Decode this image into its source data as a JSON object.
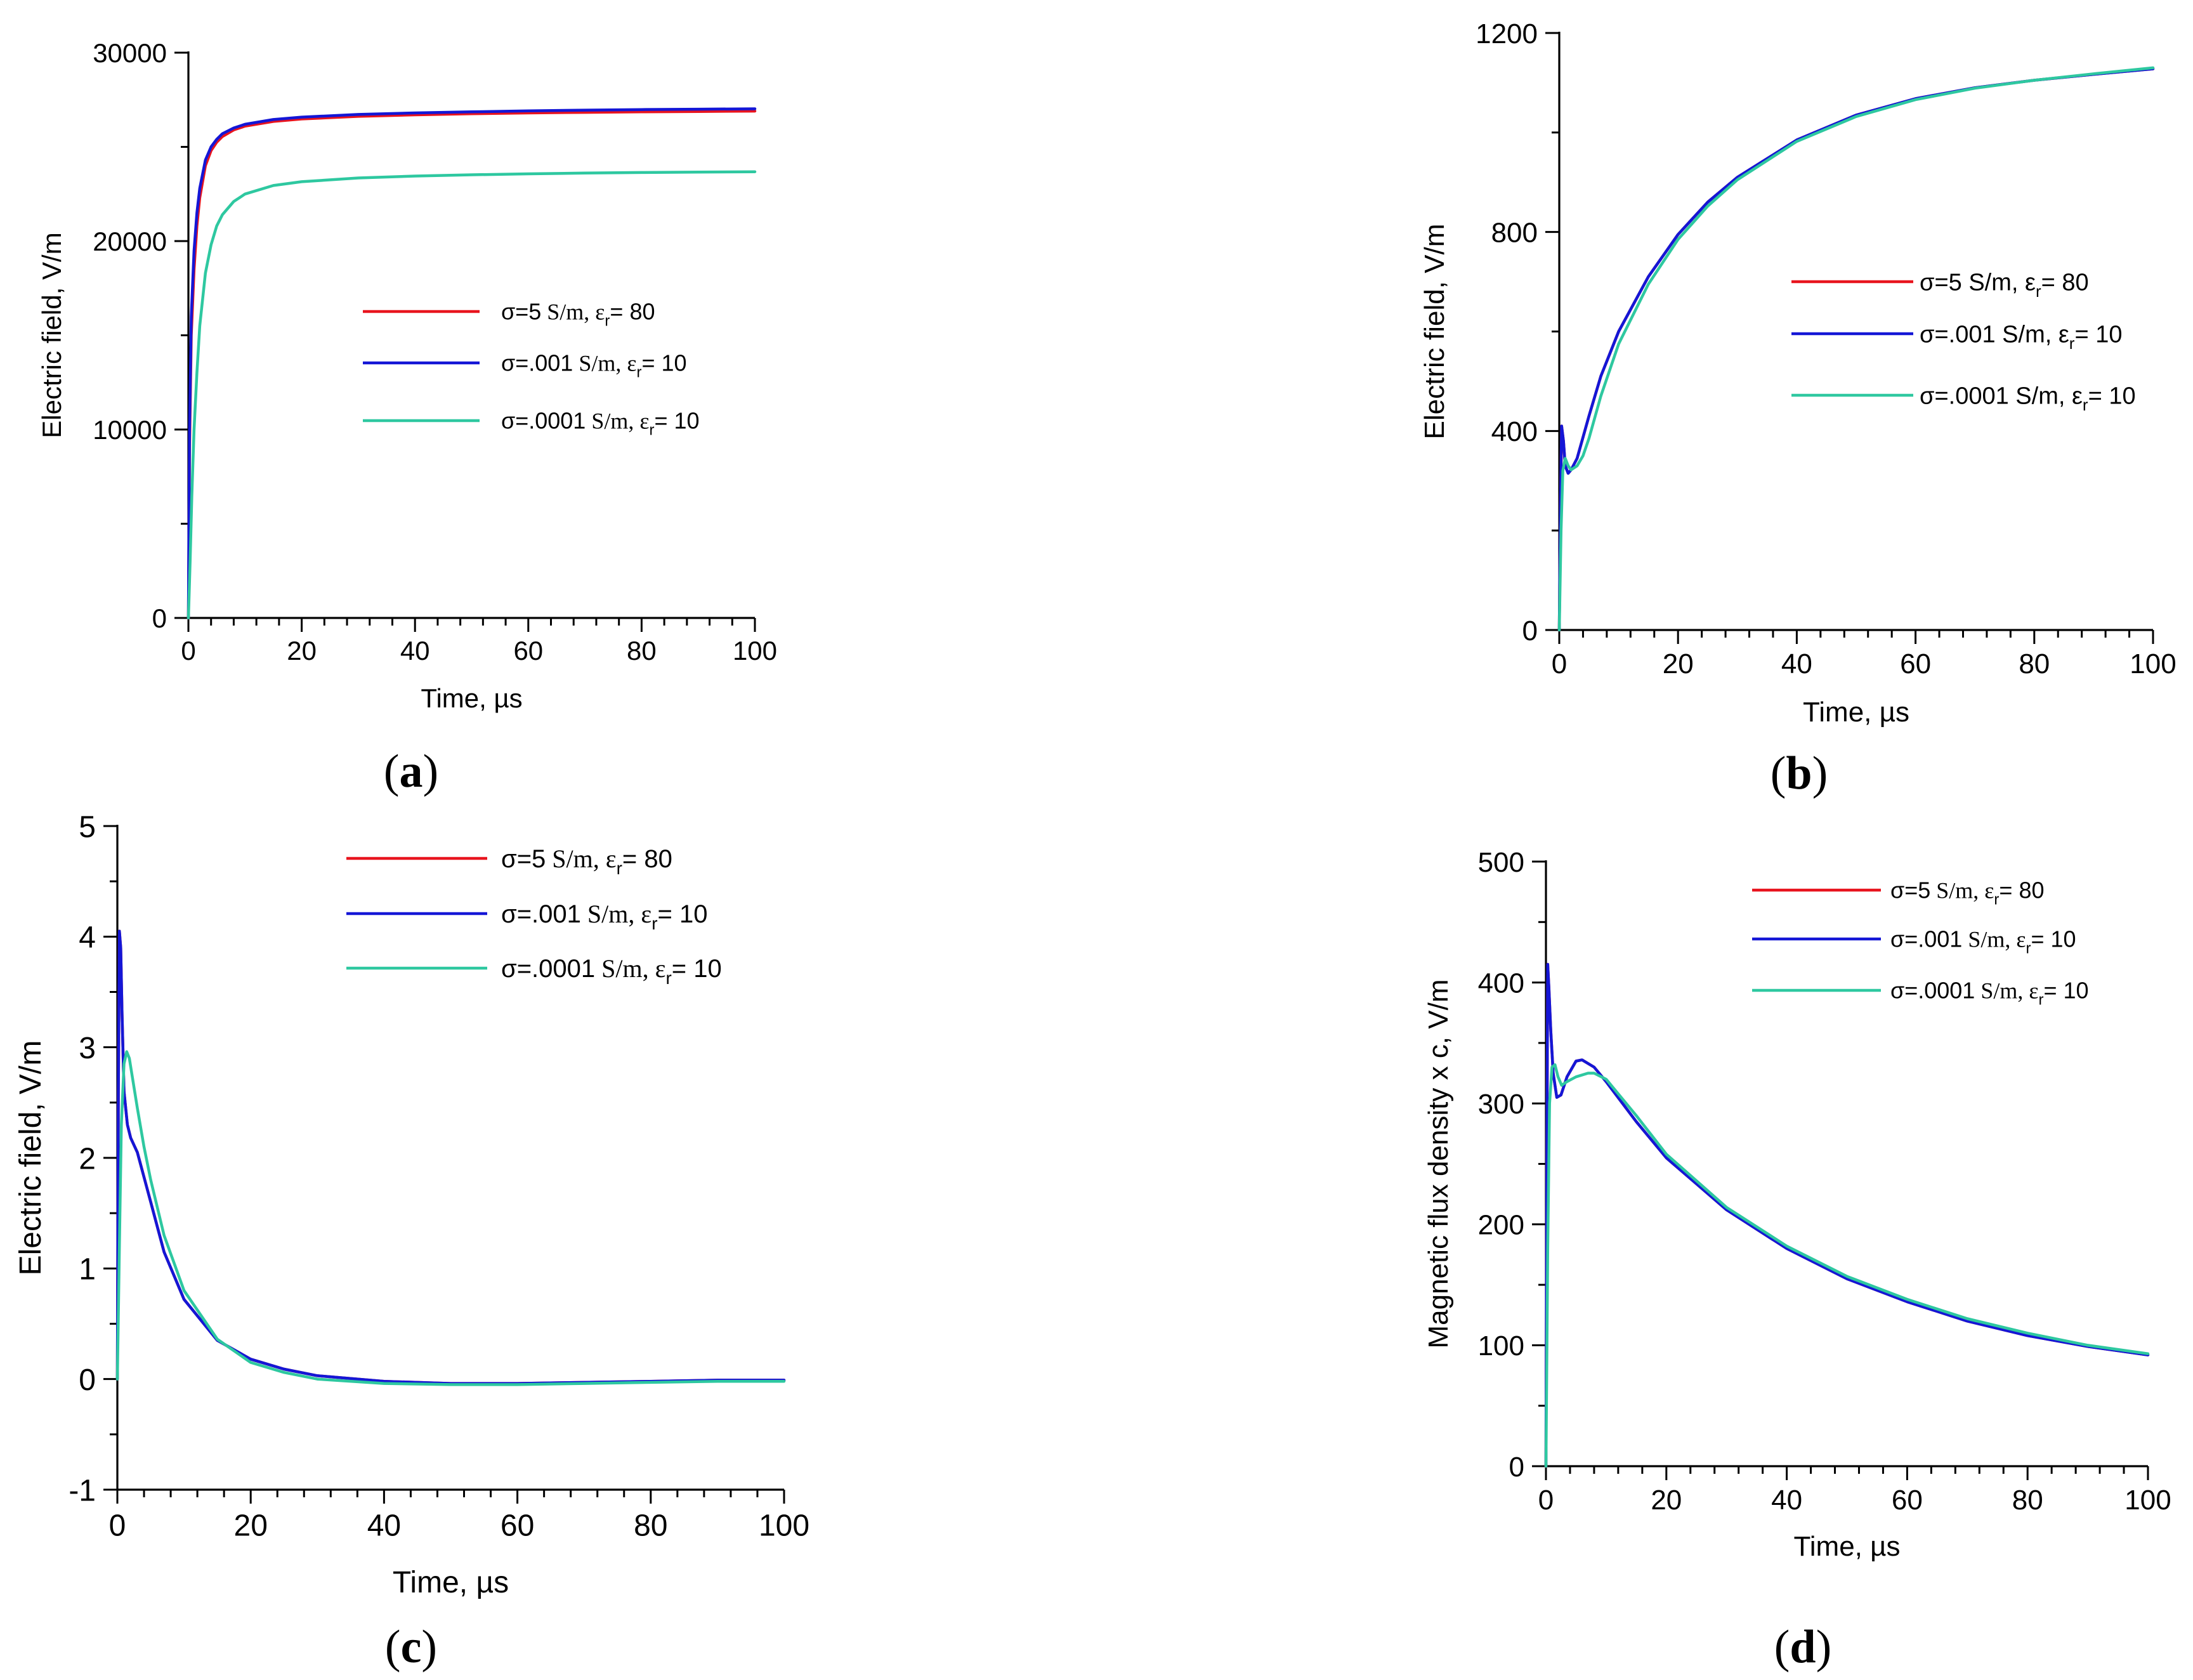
{
  "colors": {
    "red": "#e8141e",
    "blue": "#1416d6",
    "teal": "#2ec8a0"
  },
  "chart_data": [
    {
      "id": "a",
      "panel_label": {
        "pre": "(",
        "letter": "a",
        "post": ")"
      },
      "type": "line",
      "xlabel": "Time, µs",
      "ylabel": "Electric field, V/m",
      "xlim": [
        0,
        100
      ],
      "ylim": [
        0,
        30000
      ],
      "xticks": [
        0,
        20,
        40,
        60,
        80,
        100
      ],
      "xtick_labels": [
        "0",
        "20",
        "40",
        "60",
        "80",
        "100"
      ],
      "yticks": [
        0,
        10000,
        20000,
        30000
      ],
      "ytick_labels": [
        "0",
        "10000",
        "20000",
        "30000"
      ],
      "series": [
        {
          "name": "σ=5 S/m, εr= 80",
          "legend": {
            "sym": "σ=5",
            "unit": " S/m, ε",
            "sub": "r",
            "rest": "= 80"
          },
          "color": "#e8141e",
          "x": [
            0,
            0.2,
            0.5,
            1,
            1.5,
            2,
            3,
            4,
            5,
            6,
            8,
            10,
            15,
            20,
            30,
            40,
            50,
            60,
            70,
            80,
            90,
            100
          ],
          "y": [
            0,
            9000,
            15000,
            18500,
            20800,
            22300,
            24000,
            24800,
            25250,
            25550,
            25900,
            26100,
            26350,
            26480,
            26620,
            26700,
            26760,
            26800,
            26830,
            26860,
            26880,
            26900
          ]
        },
        {
          "name": "σ=.001 S/m, εr= 10",
          "legend": {
            "sym": "σ=.001",
            "unit": " S/m, ε",
            "sub": "r",
            "rest": "= 10"
          },
          "color": "#1416d6",
          "x": [
            0,
            0.2,
            0.5,
            1,
            1.5,
            2,
            3,
            4,
            5,
            6,
            8,
            10,
            15,
            20,
            30,
            40,
            50,
            60,
            70,
            80,
            90,
            100
          ],
          "y": [
            0,
            10000,
            16000,
            19500,
            21500,
            22800,
            24300,
            25000,
            25400,
            25700,
            26000,
            26200,
            26450,
            26580,
            26720,
            26800,
            26860,
            26910,
            26950,
            26980,
            27000,
            27020
          ]
        },
        {
          "name": "σ=.0001 S/m, εr= 10",
          "legend": {
            "sym": "σ=.0001",
            "unit": " S/m, ε",
            "sub": "r",
            "rest": "= 10"
          },
          "color": "#2ec8a0",
          "x": [
            0,
            0.3,
            0.6,
            1,
            1.5,
            2,
            3,
            4,
            5,
            6,
            8,
            10,
            15,
            20,
            30,
            40,
            50,
            60,
            70,
            80,
            90,
            100
          ],
          "y": [
            0,
            3000,
            6500,
            10000,
            13000,
            15500,
            18300,
            19800,
            20800,
            21400,
            22100,
            22500,
            22950,
            23150,
            23350,
            23450,
            23520,
            23570,
            23610,
            23640,
            23660,
            23680
          ]
        }
      ]
    },
    {
      "id": "b",
      "panel_label": {
        "pre": "(",
        "letter": "b",
        "post": ")"
      },
      "type": "line",
      "xlabel": "Time, µs",
      "ylabel": "Electric field, V/m",
      "xlim": [
        0,
        100
      ],
      "ylim": [
        0,
        1200
      ],
      "xticks": [
        0,
        20,
        40,
        60,
        80,
        100
      ],
      "xtick_labels": [
        "0",
        "20",
        "40",
        "60",
        "80",
        "100"
      ],
      "yticks": [
        0,
        400,
        800,
        1200
      ],
      "ytick_labels": [
        "0",
        "400",
        "800",
        "1200"
      ],
      "series": [
        {
          "name": "σ=5 S/m, εr= 80",
          "legend": {
            "sym": "σ=5",
            "unit": " S/m, ε",
            "sub": "r",
            "rest": "= 80"
          },
          "color": "#e8141e",
          "x": [
            0,
            0.2,
            0.4,
            0.7,
            1,
            1.5,
            2,
            3,
            5,
            7,
            10,
            15,
            20,
            25,
            30,
            40,
            50,
            60,
            70,
            80,
            90,
            100
          ],
          "y": [
            0,
            250,
            410,
            380,
            330,
            315,
            322,
            345,
            430,
            510,
            600,
            710,
            795,
            860,
            910,
            985,
            1035,
            1068,
            1090,
            1105,
            1117,
            1128
          ]
        },
        {
          "name": "σ=.001 S/m, εr= 10",
          "legend": {
            "sym": "σ=.001",
            "unit": " S/m, ε",
            "sub": "r",
            "rest": "= 10"
          },
          "color": "#1416d6",
          "x": [
            0,
            0.2,
            0.4,
            0.7,
            1,
            1.5,
            2,
            3,
            5,
            7,
            10,
            15,
            20,
            25,
            30,
            40,
            50,
            60,
            70,
            80,
            90,
            100
          ],
          "y": [
            0,
            250,
            410,
            380,
            330,
            315,
            322,
            345,
            430,
            510,
            600,
            710,
            795,
            860,
            910,
            985,
            1035,
            1068,
            1090,
            1105,
            1117,
            1128
          ]
        },
        {
          "name": "σ=.0001 S/m, εr= 10",
          "legend": {
            "sym": "σ=.0001",
            "unit": " S/m, ε",
            "sub": "r",
            "rest": "= 10"
          },
          "color": "#2ec8a0",
          "x": [
            0,
            0.3,
            0.6,
            1,
            1.5,
            2,
            3,
            4,
            5,
            7,
            10,
            15,
            20,
            25,
            30,
            40,
            50,
            60,
            70,
            80,
            90,
            100
          ],
          "y": [
            0,
            200,
            320,
            345,
            330,
            322,
            330,
            350,
            385,
            470,
            575,
            695,
            785,
            852,
            905,
            982,
            1032,
            1066,
            1089,
            1105,
            1118,
            1130
          ]
        }
      ]
    },
    {
      "id": "c",
      "panel_label": {
        "pre": "(",
        "letter": "c",
        "post": ")"
      },
      "type": "line",
      "xlabel": "Time, µs",
      "ylabel": "Electric field, V/m",
      "xlim": [
        0,
        100
      ],
      "ylim": [
        -1,
        5
      ],
      "xticks": [
        0,
        20,
        40,
        60,
        80,
        100
      ],
      "xtick_labels": [
        "0",
        "20",
        "40",
        "60",
        "80",
        "100"
      ],
      "yticks": [
        -1,
        0,
        1,
        2,
        3,
        4,
        5
      ],
      "ytick_labels": [
        "-1",
        "0",
        "1",
        "2",
        "3",
        "4",
        "5"
      ],
      "series": [
        {
          "name": "σ=5 S/m, εr= 80",
          "legend": {
            "sym": "σ=5",
            "unit": " S/m, ε",
            "sub": "r",
            "rest": "= 80"
          },
          "color": "#e8141e",
          "x": [
            0,
            0.15,
            0.3,
            0.5,
            0.7,
            1,
            1.5,
            2,
            3,
            5,
            7,
            10,
            15,
            20,
            25,
            30,
            40,
            50,
            60,
            70,
            80,
            90,
            100
          ],
          "y": [
            0,
            2.6,
            4.05,
            3.9,
            3.3,
            2.6,
            2.3,
            2.18,
            2.05,
            1.6,
            1.15,
            0.72,
            0.35,
            0.18,
            0.09,
            0.03,
            -0.02,
            -0.04,
            -0.04,
            -0.03,
            -0.02,
            -0.01,
            -0.01
          ]
        },
        {
          "name": "σ=.001 S/m, εr= 10",
          "legend": {
            "sym": "σ=.001",
            "unit": " S/m, ε",
            "sub": "r",
            "rest": "= 10"
          },
          "color": "#1416d6",
          "x": [
            0,
            0.15,
            0.3,
            0.5,
            0.7,
            1,
            1.5,
            2,
            3,
            5,
            7,
            10,
            15,
            20,
            25,
            30,
            40,
            50,
            60,
            70,
            80,
            90,
            100
          ],
          "y": [
            0,
            2.6,
            4.05,
            3.9,
            3.3,
            2.6,
            2.3,
            2.18,
            2.05,
            1.6,
            1.15,
            0.72,
            0.35,
            0.18,
            0.09,
            0.03,
            -0.02,
            -0.04,
            -0.04,
            -0.03,
            -0.02,
            -0.01,
            -0.01
          ]
        },
        {
          "name": "σ=.0001 S/m, εr= 10",
          "legend": {
            "sym": "σ=.0001",
            "unit": " S/m, ε",
            "sub": "r",
            "rest": "= 10"
          },
          "color": "#2ec8a0",
          "x": [
            0,
            0.3,
            0.6,
            1,
            1.4,
            1.8,
            2.2,
            3,
            4,
            5,
            7,
            10,
            15,
            20,
            25,
            30,
            40,
            50,
            60,
            70,
            80,
            90,
            100
          ],
          "y": [
            0,
            1.2,
            2.3,
            2.85,
            2.96,
            2.9,
            2.75,
            2.45,
            2.1,
            1.8,
            1.3,
            0.8,
            0.36,
            0.15,
            0.06,
            0.0,
            -0.04,
            -0.05,
            -0.05,
            -0.04,
            -0.03,
            -0.02,
            -0.02
          ]
        }
      ]
    },
    {
      "id": "d",
      "panel_label": {
        "pre": "(",
        "letter": "d",
        "post": ")"
      },
      "type": "line",
      "xlabel": "Time, µs",
      "ylabel": "Magnetic flux density x c, V/m",
      "xlim": [
        0,
        100
      ],
      "ylim": [
        0,
        500
      ],
      "xticks": [
        0,
        20,
        40,
        60,
        80,
        100
      ],
      "xtick_labels": [
        "0",
        "20",
        "40",
        "60",
        "80",
        "100"
      ],
      "yticks": [
        0,
        100,
        200,
        300,
        400,
        500
      ],
      "ytick_labels": [
        "0",
        "100",
        "200",
        "300",
        "400",
        "500"
      ],
      "series": [
        {
          "name": "σ=5 S/m, εr= 80",
          "legend": {
            "sym": "σ=5",
            "unit": " S/m, ε",
            "sub": "r",
            "rest": "= 80"
          },
          "color": "#e8141e",
          "x": [
            0,
            0.15,
            0.3,
            0.5,
            0.8,
            1.2,
            1.8,
            2.5,
            3.5,
            5,
            6,
            8,
            10,
            15,
            20,
            30,
            40,
            50,
            60,
            70,
            80,
            90,
            100
          ],
          "y": [
            0,
            250,
            415,
            395,
            360,
            325,
            305,
            307,
            322,
            335,
            336,
            330,
            318,
            285,
            255,
            212,
            180,
            155,
            136,
            120,
            108,
            99,
            92
          ]
        },
        {
          "name": "σ=.001 S/m, εr= 10",
          "legend": {
            "sym": "σ=.001",
            "unit": " S/m, ε",
            "sub": "r",
            "rest": "= 10"
          },
          "color": "#1416d6",
          "x": [
            0,
            0.15,
            0.3,
            0.5,
            0.8,
            1.2,
            1.8,
            2.5,
            3.5,
            5,
            6,
            8,
            10,
            15,
            20,
            30,
            40,
            50,
            60,
            70,
            80,
            90,
            100
          ],
          "y": [
            0,
            250,
            415,
            395,
            360,
            325,
            305,
            307,
            322,
            335,
            336,
            330,
            318,
            285,
            255,
            212,
            180,
            155,
            136,
            120,
            108,
            99,
            92
          ]
        },
        {
          "name": "σ=.0001 S/m, εr= 10",
          "legend": {
            "sym": "σ=.0001",
            "unit": " S/m, ε",
            "sub": "r",
            "rest": "= 10"
          },
          "color": "#2ec8a0",
          "x": [
            0,
            0.3,
            0.6,
            1,
            1.5,
            2,
            2.6,
            3.5,
            5,
            7,
            8,
            10,
            15,
            20,
            30,
            40,
            50,
            60,
            70,
            80,
            90,
            100
          ],
          "y": [
            0,
            180,
            300,
            330,
            332,
            322,
            315,
            318,
            322,
            325,
            325,
            320,
            290,
            258,
            214,
            182,
            157,
            138,
            122,
            110,
            100,
            93
          ]
        }
      ]
    }
  ]
}
